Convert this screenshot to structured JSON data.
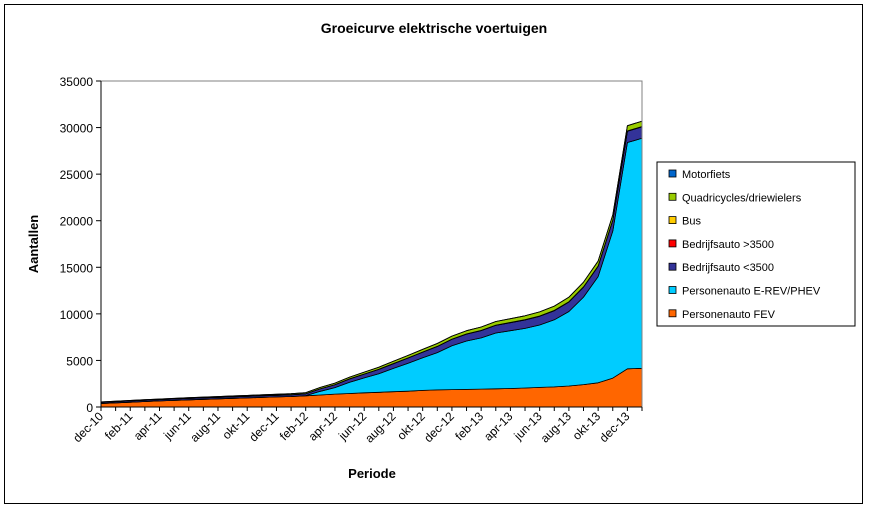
{
  "chart_data": {
    "type": "area",
    "stacked": true,
    "title": "Groeicurve elektrische voertuigen",
    "xlabel": "Periode",
    "ylabel": "Aantallen",
    "ylim": [
      0,
      35000
    ],
    "yticks": [
      "0",
      "5000",
      "10000",
      "15000",
      "20000",
      "25000",
      "30000",
      "35000"
    ],
    "grid": false,
    "legend_position": "right",
    "x_tick_labels": [
      "dec-10",
      "feb-11",
      "apr-11",
      "jun-11",
      "aug-11",
      "okt-11",
      "dec-11",
      "feb-12",
      "apr-12",
      "jun-12",
      "aug-12",
      "okt-12",
      "dec-12",
      "feb-13",
      "apr-13",
      "jun-13",
      "aug-13",
      "okt-13",
      "dec-13"
    ],
    "x": [
      "dec-10",
      "jan-11",
      "feb-11",
      "mrt-11",
      "apr-11",
      "mei-11",
      "jun-11",
      "jul-11",
      "aug-11",
      "sep-11",
      "okt-11",
      "nov-11",
      "dec-11",
      "jan-12",
      "feb-12",
      "mrt-12",
      "apr-12",
      "mei-12",
      "jun-12",
      "jul-12",
      "aug-12",
      "sep-12",
      "okt-12",
      "nov-12",
      "dec-12",
      "jan-13",
      "feb-13",
      "mrt-13",
      "apr-13",
      "mei-13",
      "jun-13",
      "jul-13",
      "aug-13",
      "sep-13",
      "okt-13",
      "nov-13",
      "dec-13",
      "jan-14"
    ],
    "series": [
      {
        "name": "Personenauto FEV",
        "color": "#FF6600",
        "values": [
          380,
          450,
          520,
          590,
          650,
          710,
          770,
          830,
          880,
          930,
          980,
          1030,
          1080,
          1130,
          1200,
          1290,
          1380,
          1450,
          1520,
          1580,
          1640,
          1700,
          1780,
          1840,
          1870,
          1890,
          1920,
          1950,
          1990,
          2040,
          2100,
          2160,
          2250,
          2400,
          2600,
          3100,
          4100,
          4150
        ]
      },
      {
        "name": "Personenauto E-REV/PHEV",
        "color": "#00CCFF",
        "values": [
          0,
          0,
          0,
          0,
          0,
          0,
          0,
          0,
          0,
          0,
          0,
          0,
          0,
          0,
          20,
          400,
          700,
          1200,
          1600,
          2000,
          2500,
          3000,
          3500,
          4000,
          4700,
          5200,
          5500,
          6000,
          6200,
          6400,
          6700,
          7200,
          8000,
          9400,
          11400,
          15800,
          24300,
          24700
        ]
      },
      {
        "name": "Bedrijfsauto <3500",
        "color": "#333399",
        "values": [
          120,
          125,
          130,
          135,
          140,
          145,
          150,
          155,
          160,
          165,
          170,
          175,
          180,
          185,
          200,
          260,
          310,
          360,
          410,
          460,
          510,
          560,
          610,
          660,
          700,
          740,
          780,
          820,
          860,
          900,
          940,
          980,
          1020,
          1060,
          1100,
          1150,
          1200,
          1220
        ]
      },
      {
        "name": "Bedrijfsauto >3500",
        "color": "#FF0000",
        "values": [
          5,
          5,
          5,
          5,
          5,
          5,
          5,
          5,
          5,
          5,
          5,
          5,
          5,
          5,
          5,
          5,
          10,
          10,
          10,
          10,
          10,
          10,
          10,
          10,
          10,
          10,
          15,
          15,
          15,
          15,
          15,
          15,
          20,
          20,
          20,
          20,
          20,
          20
        ]
      },
      {
        "name": "Bus",
        "color": "#FFCC00",
        "values": [
          2,
          2,
          2,
          2,
          2,
          2,
          2,
          2,
          2,
          2,
          2,
          2,
          2,
          2,
          2,
          5,
          5,
          5,
          5,
          5,
          5,
          5,
          5,
          10,
          10,
          10,
          10,
          10,
          15,
          15,
          15,
          15,
          20,
          20,
          20,
          20,
          25,
          25
        ]
      },
      {
        "name": "Quadricycles/driewielers",
        "color": "#99CC00",
        "values": [
          40,
          45,
          50,
          55,
          60,
          65,
          70,
          75,
          80,
          85,
          90,
          95,
          100,
          110,
          120,
          140,
          160,
          180,
          200,
          220,
          240,
          260,
          280,
          300,
          320,
          340,
          360,
          380,
          400,
          420,
          440,
          460,
          480,
          500,
          520,
          540,
          560,
          570
        ]
      },
      {
        "name": "Motorfiets",
        "color": "#0066CC",
        "values": [
          3,
          3,
          3,
          3,
          3,
          3,
          3,
          3,
          3,
          3,
          3,
          3,
          3,
          3,
          3,
          3,
          5,
          5,
          5,
          5,
          5,
          5,
          5,
          5,
          5,
          5,
          5,
          5,
          5,
          5,
          5,
          5,
          10,
          10,
          10,
          10,
          10,
          10
        ]
      }
    ]
  }
}
